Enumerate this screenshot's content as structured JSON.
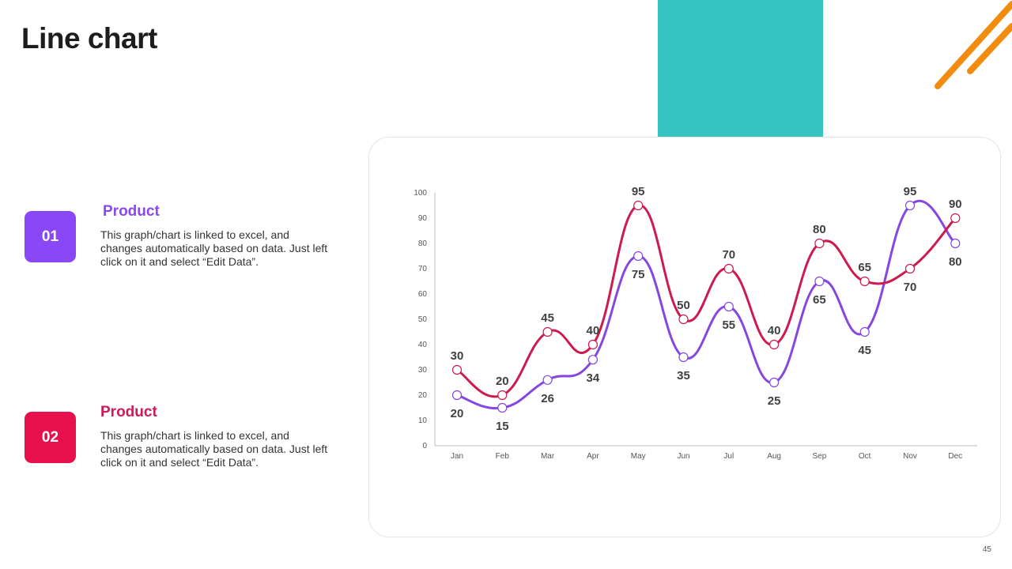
{
  "page": {
    "title": "Line chart",
    "page_number": "45"
  },
  "colors": {
    "teal": "#36c4c0",
    "orange": "#f28c0f"
  },
  "legend": [
    {
      "number": "01",
      "title": "Product",
      "description": "This graph/chart is linked to excel, and changes automatically based on data. Just left click on it and select “Edit Data”.",
      "badge_color": "#8a47f5",
      "title_color": "#8a47f5"
    },
    {
      "number": "02",
      "title": "Product",
      "description": "This graph/chart is linked to excel, and changes automatically based on data. Just left click on it and select “Edit Data”.",
      "badge_color": "#e8104c",
      "title_color": "#cc1b55"
    }
  ],
  "chart_data": {
    "type": "line",
    "title": "",
    "xlabel": "",
    "ylabel": "",
    "ylim": [
      0,
      100
    ],
    "yticks": [
      0,
      10,
      20,
      30,
      40,
      50,
      60,
      70,
      80,
      90,
      100
    ],
    "categories": [
      "Jan",
      "Feb",
      "Mar",
      "Apr",
      "May",
      "Jun",
      "Jul",
      "Aug",
      "Sep",
      "Oct",
      "Nov",
      "Dec"
    ],
    "series": [
      {
        "name": "Product 01",
        "color": "#8447e0",
        "values": [
          20,
          15,
          26,
          34,
          75,
          35,
          55,
          25,
          65,
          45,
          95,
          80
        ]
      },
      {
        "name": "Product 02",
        "color": "#cc1b4e",
        "values": [
          30,
          20,
          45,
          40,
          95,
          50,
          70,
          40,
          80,
          65,
          70,
          90
        ]
      }
    ]
  }
}
